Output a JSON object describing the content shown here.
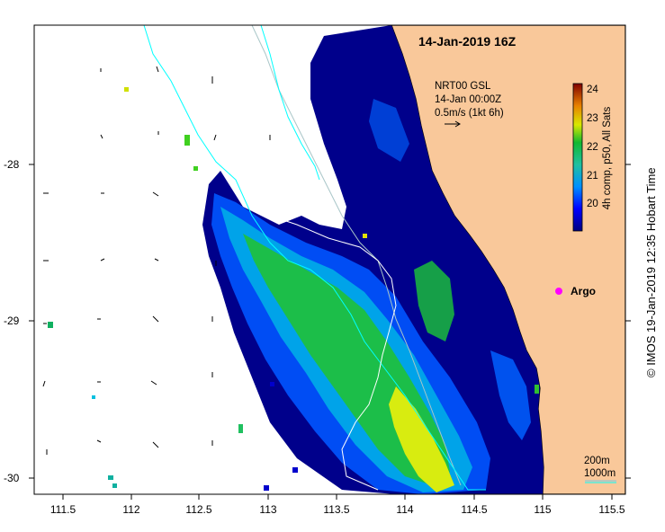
{
  "map": {
    "date_title": "14-Jan-2019 16Z",
    "arrow_info": {
      "line1": "NRT00 GSL",
      "line2": "14-Jan 00:00Z",
      "line3": "0.5m/s (1kt 6h)"
    },
    "argo_label": "Argo",
    "colorbar": {
      "title": "4h comp, p50, All Sats",
      "ticks": [
        "24",
        "23",
        "22",
        "21",
        "20"
      ],
      "range": [
        19.5,
        24.2
      ]
    },
    "scale": {
      "label_200": "200m",
      "label_1000": "1000m"
    },
    "credit": "© IMOS 19-Jan-2019 12:35 Hobart Time",
    "x_ticks": [
      "111.5",
      "112",
      "112.5",
      "113",
      "113.5",
      "114",
      "114.5",
      "115",
      "115.5"
    ],
    "y_ticks": [
      "-28",
      "-29",
      "-30"
    ],
    "colors": {
      "land": "#f9c89a",
      "coast": "#000000",
      "bathy_200": "#a9c6c8",
      "bathy_1000": "#00ffff",
      "argo": "#ff00ff",
      "sst_low": "#00008b",
      "sst_high": "#ffff00"
    }
  }
}
